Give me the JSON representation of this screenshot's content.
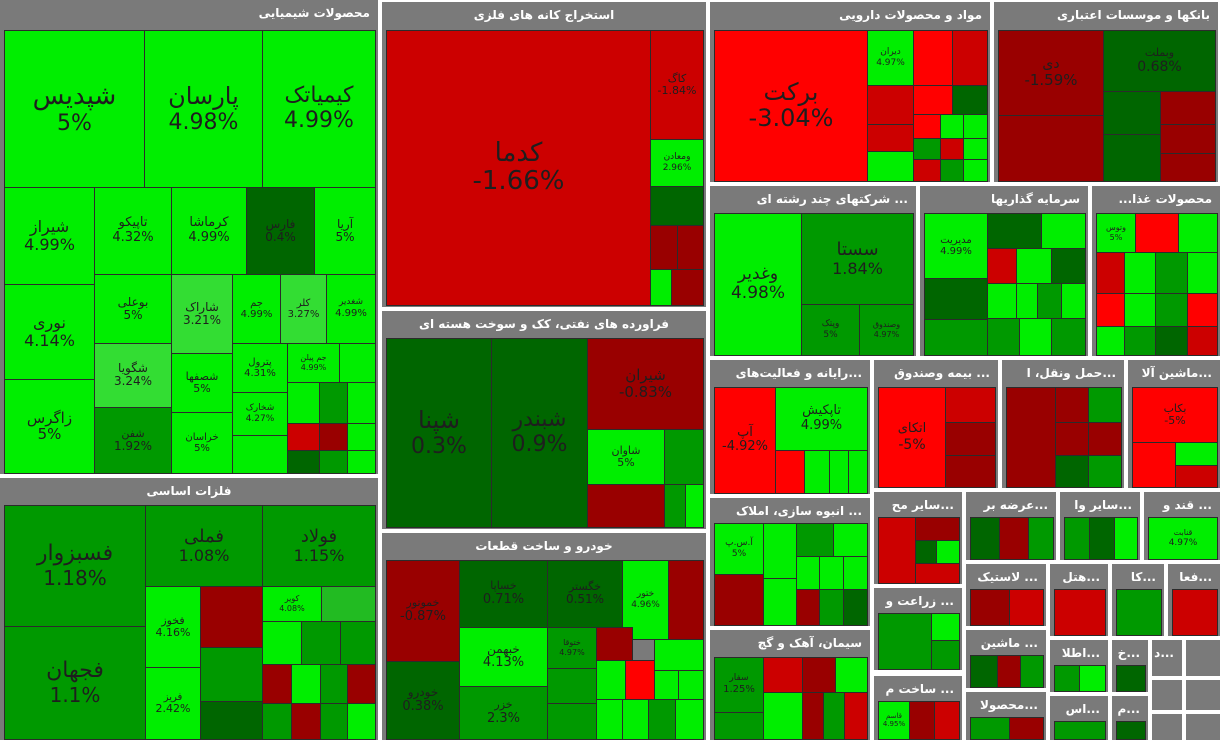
{
  "sectors": {
    "chemical": "محصولات شیمیایی",
    "metal_mining": "استخراج کانه های فلزی",
    "pharma": "مواد و محصولات دارویی",
    "banks": "بانکها و موسسات اعتباری",
    "multi": "... شرکتهای چند رشته ای",
    "investment": "سرمایه گذاریها",
    "food": "محصولات غذا...",
    "oil": "فراورده های نفتی، کک و سوخت هسته ای",
    "basic_metals": "فلزات اساسی",
    "auto": "خودرو و ساخت قطعات",
    "computer": "...رایانه و فعالیت‌های",
    "insurance": "... بیمه وصندوق",
    "transport": "...حمل ونقل، ا",
    "machinery": "...ماشین آلا",
    "construction": "... انبوه سازی، املاک",
    "other1": "...سایر مح",
    "supply": "...عرضه بر",
    "other2": "...سایر وا",
    "sugar": "... قند و",
    "plastic": "... لاستیک",
    "hotel": "...هتل",
    "ka": "...کا",
    "fa": "...فعا",
    "agri": "... زراعت و",
    "cement": "سیمان، آهک و گچ",
    "machine2": "... ماشین",
    "build": "... ساخت م",
    "etela": "...اطلا",
    "kh": "...خ",
    "d": "...د",
    "products": "...محصولا",
    "as": "...اس",
    "m": "...م"
  },
  "tiles": {
    "shapdis": {
      "name": "شپدیس",
      "pct": "5%"
    },
    "parsan": {
      "name": "پارسان",
      "pct": "4.98%"
    },
    "kimiatek": {
      "name": "کیمیاتک",
      "pct": "4.99%"
    },
    "shiraz": {
      "name": "شیراز",
      "pct": "4.99%"
    },
    "tapiko": {
      "name": "تاپیکو",
      "pct": "4.32%"
    },
    "kermasha": {
      "name": "کرماشا",
      "pct": "4.99%"
    },
    "farsi": {
      "name": "فارس",
      "pct": "0.4%"
    },
    "arya": {
      "name": "آریا",
      "pct": "5%"
    },
    "noori": {
      "name": "نوری",
      "pct": "4.14%"
    },
    "booali": {
      "name": "بوعلی",
      "pct": "5%"
    },
    "sharak": {
      "name": "شاراک",
      "pct": "3.21%"
    },
    "jam": {
      "name": "جم",
      "pct": "4.99%"
    },
    "kala": {
      "name": "کلر",
      "pct": "3.27%"
    },
    "shghadir": {
      "name": "شغدیر",
      "pct": "4.99%"
    },
    "shegoia": {
      "name": "شگویا",
      "pct": "3.24%"
    },
    "shesfahan": {
      "name": "شصفها",
      "pct": "5%"
    },
    "petrol": {
      "name": "پترول",
      "pct": "4.31%"
    },
    "jampilen": {
      "name": "جم پیلن",
      "pct": "4.99%"
    },
    "zagros": {
      "name": "زاگرس",
      "pct": "5%"
    },
    "shafan": {
      "name": "شفن",
      "pct": "1.92%"
    },
    "khorasan": {
      "name": "خراسان",
      "pct": "5%"
    },
    "shakhark": {
      "name": "شخارک",
      "pct": "4.27%"
    },
    "kadama": {
      "name": "کدما",
      "pct": "-1.66%"
    },
    "kaga": {
      "name": "کاگ",
      "pct": "-1.84%"
    },
    "maadan": {
      "name": "ومعادن",
      "pct": "2.96%"
    },
    "barkat": {
      "name": "برکت",
      "pct": "-3.04%"
    },
    "dibaran": {
      "name": "دیران",
      "pct": "4.97%"
    },
    "dey": {
      "name": "دی",
      "pct": "-1.59%"
    },
    "vaetebar": {
      "name": "وبملت",
      "pct": "0.68%"
    },
    "vaghadir": {
      "name": "وغدیر",
      "pct": "4.98%"
    },
    "sesta": {
      "name": "سستا",
      "pct": "1.84%"
    },
    "vpetek": {
      "name": "وپتک",
      "pct": "5%"
    },
    "vasandoq": {
      "name": "وصندوق",
      "pct": "4.97%"
    },
    "modiriat": {
      "name": "مدیریت",
      "pct": "4.99%"
    },
    "shapna": {
      "name": "شپنا",
      "pct": "0.3%"
    },
    "shabandar": {
      "name": "شبندر",
      "pct": "0.9%"
    },
    "shiran": {
      "name": "شیران",
      "pct": "-0.83%"
    },
    "shavan": {
      "name": "شاوان",
      "pct": "5%"
    },
    "fesabzevar": {
      "name": "فسبزوار",
      "pct": "1.18%"
    },
    "fameli": {
      "name": "فملی",
      "pct": "1.08%"
    },
    "foolad": {
      "name": "فولاد",
      "pct": "1.15%"
    },
    "fajahan": {
      "name": "فجهان",
      "pct": "1.1%"
    },
    "fakhoz": {
      "name": "فخوز",
      "pct": "4.16%"
    },
    "fereyr": {
      "name": "فریز",
      "pct": "2.42%"
    },
    "kovir": {
      "name": "کویر",
      "pct": "4.08%"
    },
    "khesapa": {
      "name": "خساپا",
      "pct": "0.71%"
    },
    "khegostar": {
      "name": "خگستر",
      "pct": "0.51%"
    },
    "khetoor": {
      "name": "ختور",
      "pct": "4.96%"
    },
    "khodro": {
      "name": "خودرو",
      "pct": "0.38%"
    },
    "khebahman": {
      "name": "خبهمن",
      "pct": "4.13%"
    },
    "kheroo": {
      "name": "خزر",
      "pct": "2.3%"
    },
    "khemotor": {
      "name": "خموتور",
      "pct": "-0.87%"
    },
    "khetog": {
      "name": "ختوقا",
      "pct": "4.97%"
    },
    "ap": {
      "name": "آپ",
      "pct": "-4.92%"
    },
    "tapikish": {
      "name": "تاپکیش",
      "pct": "4.99%"
    },
    "enkai": {
      "name": "اتکای",
      "pct": "-5%"
    },
    "bekab": {
      "name": "بکاب",
      "pct": "-5%"
    },
    "asp": {
      "name": "آ.س.پ",
      "pct": "5%"
    },
    "sesfaha": {
      "name": "سفار",
      "pct": "1.25%"
    },
    "qnabat": {
      "name": "قنابت",
      "pct": "4.97%"
    },
    "vatoos": {
      "name": "وتوس",
      "pct": "5%"
    },
    "qeshar": {
      "name": "قاسم",
      "pct": "4.95%"
    }
  }
}
